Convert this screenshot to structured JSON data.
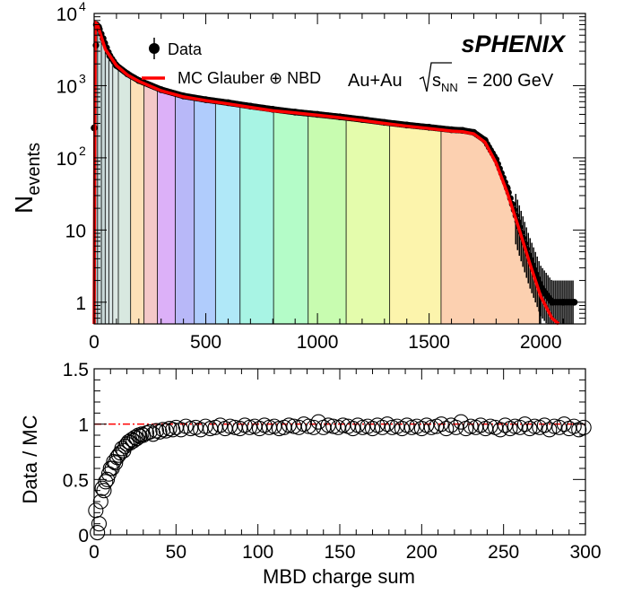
{
  "experiment_label": "sPHENIX",
  "system_label": "Au+Au",
  "energy_label": "= 200 GeV",
  "energy_symbol": "s",
  "energy_subscript": "NN",
  "chart_data": [
    {
      "type": "histogram",
      "ylabel_main": "N",
      "ylabel_sub": "events",
      "xlim": [
        0,
        2200
      ],
      "ylim": [
        0.5,
        10000
      ],
      "yscale": "log",
      "xticks": [
        0,
        500,
        1000,
        1500,
        2000
      ],
      "yticks": [
        {
          "value": 1,
          "label": "1",
          "exp": ""
        },
        {
          "value": 10,
          "label": "10",
          "exp": ""
        },
        {
          "value": 100,
          "label": "10",
          "exp": "2"
        },
        {
          "value": 1000,
          "label": "10",
          "exp": "3"
        },
        {
          "value": 10000,
          "label": "10",
          "exp": "4"
        }
      ],
      "legend": [
        {
          "label": "Data",
          "marker": "filled-circle",
          "color": "#000000"
        },
        {
          "label": "MC Glauber ⊕ NBD",
          "marker": "line",
          "color": "#ff0000"
        }
      ],
      "centrality_bin_edges": [
        0,
        17,
        34,
        51,
        68,
        85,
        110,
        165,
        225,
        285,
        365,
        450,
        545,
        655,
        805,
        960,
        1130,
        1325,
        1555,
        1995
      ],
      "centrality_bin_colors": [
        "#b8c8c8",
        "#c8d8d8",
        "#c8d8d8",
        "#d0dcdc",
        "#d8e4e4",
        "#dce8e4",
        "#d8e8e0",
        "#fce0b8",
        "#f4c8c8",
        "#dcb0f8",
        "#b8b8f8",
        "#b0ccfc",
        "#b0e8f8",
        "#a8f4e4",
        "#b4fcc8",
        "#c8fcb0",
        "#e4fcac",
        "#fcf4ac",
        "#fcd0b0"
      ],
      "series": [
        {
          "name": "MC Glauber ⊕ NBD",
          "color": "#ff0000",
          "x": [
            0,
            5,
            15,
            30,
            50,
            100,
            150,
            200,
            300,
            400,
            500,
            600,
            700,
            800,
            900,
            1000,
            1100,
            1200,
            1300,
            1400,
            1500,
            1600,
            1650,
            1700,
            1750,
            1800,
            1850,
            1900,
            1950,
            2000,
            2050,
            2080
          ],
          "y": [
            0.5,
            7500,
            7000,
            5000,
            3200,
            1900,
            1400,
            1150,
            850,
            700,
            620,
            560,
            500,
            450,
            420,
            390,
            360,
            330,
            300,
            275,
            255,
            235,
            230,
            215,
            165,
            85,
            33,
            11,
            3.5,
            1.2,
            0.6,
            0.5
          ]
        },
        {
          "name": "Data",
          "color": "#000000",
          "x": [
            0,
            10,
            20,
            40,
            70,
            100,
            150,
            200,
            300,
            400,
            500,
            600,
            700,
            800,
            900,
            1000,
            1100,
            1200,
            1300,
            1400,
            1500,
            1600,
            1650,
            1700,
            1750,
            1800,
            1850,
            1900,
            1950,
            2000,
            2050,
            2100,
            2150
          ],
          "y": [
            260,
            7000,
            6500,
            4500,
            2600,
            1900,
            1450,
            1180,
            880,
            720,
            640,
            580,
            520,
            470,
            430,
            400,
            370,
            340,
            310,
            285,
            265,
            245,
            240,
            225,
            175,
            95,
            38,
            12,
            4,
            1.6,
            1,
            1,
            1
          ]
        }
      ]
    },
    {
      "type": "scatter",
      "xlabel": "MBD charge sum",
      "ylabel": "Data / MC",
      "xlim": [
        0,
        300
      ],
      "ylim": [
        0,
        1.5
      ],
      "xticks": [
        0,
        50,
        100,
        150,
        200,
        250,
        300
      ],
      "yticks": [
        0,
        0.5,
        1,
        1.5
      ],
      "ytick_labels": [
        "0",
        "0.5",
        "1",
        "1.5"
      ],
      "reference_line": {
        "y": 1,
        "color": "#ff0000",
        "style": "dash-dot"
      },
      "series": [
        {
          "name": "Data / MC",
          "marker": "open-circle",
          "color": "#000000",
          "x": [
            1,
            2,
            3,
            4,
            5,
            6,
            7,
            8,
            9,
            10,
            11,
            12,
            13,
            14,
            15,
            16,
            17,
            18,
            19,
            20,
            21,
            22,
            23,
            24,
            25,
            26,
            27,
            28,
            29,
            30,
            32,
            34,
            36,
            38,
            40,
            42,
            44,
            46,
            48,
            50,
            53,
            56,
            59,
            62,
            65,
            68,
            71,
            74,
            77,
            80,
            83,
            86,
            89,
            92,
            95,
            98,
            101,
            104,
            107,
            110,
            113,
            116,
            119,
            122,
            125,
            128,
            131,
            134,
            137,
            140,
            143,
            146,
            149,
            152,
            155,
            158,
            161,
            164,
            167,
            170,
            173,
            176,
            179,
            182,
            185,
            188,
            191,
            194,
            197,
            200,
            203,
            206,
            209,
            212,
            215,
            218,
            221,
            224,
            227,
            230,
            233,
            236,
            239,
            242,
            245,
            248,
            251,
            254,
            257,
            260,
            263,
            266,
            269,
            272,
            275,
            278,
            281,
            284,
            287,
            290,
            293,
            296,
            299
          ],
          "y": [
            0.22,
            0.02,
            0.1,
            0.3,
            0.42,
            0.4,
            0.48,
            0.5,
            0.55,
            0.6,
            0.6,
            0.66,
            0.65,
            0.7,
            0.72,
            0.74,
            0.78,
            0.76,
            0.8,
            0.82,
            0.84,
            0.83,
            0.86,
            0.85,
            0.88,
            0.87,
            0.9,
            0.89,
            0.91,
            0.9,
            0.92,
            0.93,
            0.91,
            0.94,
            0.93,
            0.95,
            0.94,
            0.96,
            0.95,
            0.97,
            0.95,
            0.98,
            0.96,
            0.97,
            0.95,
            0.98,
            0.96,
            0.97,
            0.99,
            0.96,
            0.98,
            0.97,
            0.96,
            0.99,
            0.97,
            0.98,
            0.96,
            0.99,
            0.97,
            0.98,
            0.96,
            0.97,
            0.99,
            0.98,
            0.97,
            1.0,
            0.98,
            0.97,
            1.02,
            0.97,
            0.99,
            0.98,
            0.97,
            0.99,
            0.98,
            0.96,
            0.99,
            0.97,
            0.98,
            0.96,
            0.99,
            0.97,
            1.0,
            0.97,
            0.98,
            0.96,
            0.99,
            0.97,
            0.98,
            0.96,
            0.99,
            0.97,
            0.98,
            1.0,
            0.96,
            0.99,
            0.97,
            1.02,
            0.96,
            0.98,
            0.97,
            0.99,
            0.96,
            0.98,
            0.97,
            0.95,
            0.99,
            0.96,
            0.98,
            0.97,
            1.0,
            0.96,
            0.98,
            0.97,
            0.99,
            0.95,
            0.98,
            0.97,
            1.0,
            0.96,
            0.98,
            0.95,
            0.97
          ]
        }
      ]
    }
  ]
}
